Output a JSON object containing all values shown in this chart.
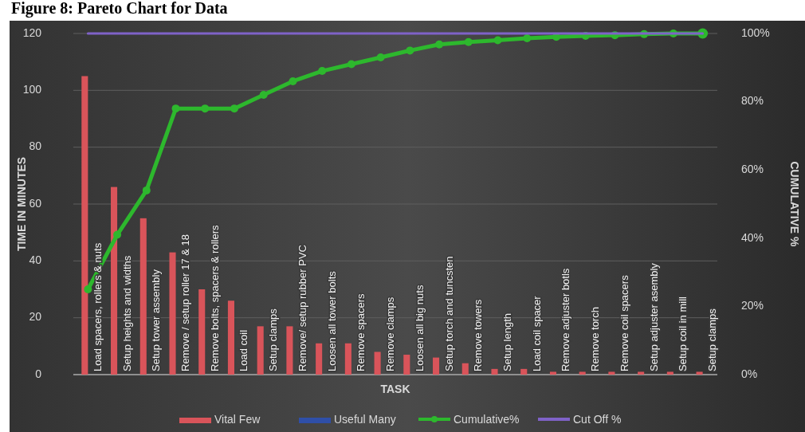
{
  "chart_data": {
    "type": "bar",
    "title": "Figure 8: Pareto Chart for Data",
    "xlabel": "TASK",
    "ylabel": "TIME IN MINUTES",
    "y2label": "CUMULATIVE %",
    "categories": [
      "Load spacers, rollers & nuts",
      "Setup heights and widths",
      "Setup tower assembly",
      "Remove / setup roller 17 & 18",
      "Remove bolts, spacers & rollers",
      "Load coil",
      "Setup clamps",
      "Remove/ setup rubber PVC",
      "Loosen all tower bolts",
      "Remove spacers",
      "Remove clamps",
      "Loosen all big nuts",
      "Setup torch and tuncsten",
      "Remove towers",
      "Setup length",
      "Load coil spacer",
      "Remove adjuster botls",
      "Remove torch",
      "Remove coil spacers",
      "Setup adjuster asembly",
      "Setup coil in mill",
      "Setup clamps"
    ],
    "series": [
      {
        "name": "Vital Few",
        "color": "#d9545a",
        "values": [
          105,
          66,
          55,
          43,
          30,
          26,
          17,
          17,
          11,
          11,
          8,
          7,
          6,
          4,
          2,
          2,
          1,
          1,
          1,
          1,
          1,
          1
        ]
      },
      {
        "name": "Useful Many",
        "color": "#2f4fa8",
        "values": [
          null,
          null,
          null,
          null,
          null,
          null,
          null,
          null,
          null,
          null,
          null,
          null,
          null,
          null,
          null,
          null,
          null,
          null,
          null,
          null,
          null,
          null
        ]
      },
      {
        "name": "Cumulative%",
        "type": "line",
        "axis": "y2",
        "marker": "circle",
        "color": "#2db82d",
        "values": [
          25,
          41,
          54,
          78,
          78,
          78,
          82,
          86,
          89,
          91,
          93,
          95,
          96.8,
          97.5,
          98,
          98.6,
          99,
          99.3,
          99.5,
          99.8,
          100,
          100
        ]
      },
      {
        "name": "Cut Off %",
        "type": "line",
        "axis": "y2",
        "marker": "none",
        "color": "#7f62c8",
        "values": [
          100,
          100,
          100,
          100,
          100,
          100,
          100,
          100,
          100,
          100,
          100,
          100,
          100,
          100,
          100,
          100,
          100,
          100,
          100,
          100,
          100,
          100
        ]
      }
    ],
    "ylim": [
      0,
      120
    ],
    "yticks": [
      0,
      20,
      40,
      60,
      80,
      100,
      120
    ],
    "y2lim": [
      0,
      100
    ],
    "y2ticks": [
      {
        "value": 0,
        "label": "0%"
      },
      {
        "value": 20,
        "label": "20%"
      },
      {
        "value": 40,
        "label": "40%"
      },
      {
        "value": 60,
        "label": "60%"
      },
      {
        "value": 80,
        "label": "80%"
      },
      {
        "value": 100,
        "label": "100%"
      }
    ],
    "grid": "y",
    "legend": "bottom"
  }
}
